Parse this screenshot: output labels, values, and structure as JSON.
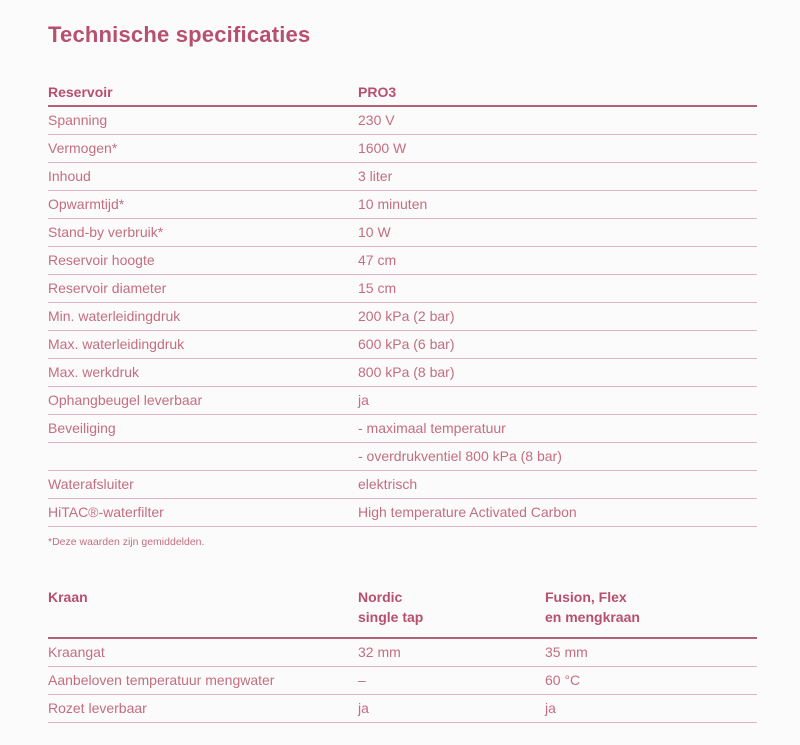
{
  "page": {
    "title": "Technische specificaties",
    "footnote": "*Deze waarden zijn gemiddelden."
  },
  "colors": {
    "accent": "#b7506e",
    "text": "#c36e81",
    "divider": "#e0b4bf",
    "header_divider": "#b26076",
    "background": "#fcfbfb"
  },
  "table1": {
    "header": {
      "label": "Reservoir",
      "value": "PRO3"
    },
    "rows": [
      {
        "label": "Spanning",
        "value": "230 V"
      },
      {
        "label": "Vermogen*",
        "value": "1600 W"
      },
      {
        "label": "Inhoud",
        "value": "3 liter"
      },
      {
        "label": "Opwarmtijd*",
        "value": "10 minuten"
      },
      {
        "label": "Stand-by verbruik*",
        "value": "10 W"
      },
      {
        "label": "Reservoir hoogte",
        "value": "47 cm"
      },
      {
        "label": "Reservoir diameter",
        "value": "15 cm"
      },
      {
        "label": "Min. waterleidingdruk",
        "value": "200 kPa (2 bar)"
      },
      {
        "label": "Max. waterleidingdruk",
        "value": "600 kPa (6 bar)"
      },
      {
        "label": "Max. werkdruk",
        "value": "800 kPa (8 bar)"
      },
      {
        "label": "Ophangbeugel leverbaar",
        "value": "ja"
      },
      {
        "label": "Beveiliging",
        "value": "- maximaal temperatuur"
      },
      {
        "label": "",
        "value": "- overdrukventiel 800 kPa (8 bar)"
      },
      {
        "label": "Waterafsluiter",
        "value": "elektrisch"
      },
      {
        "label": "HiTAC®-waterfilter",
        "value": "High temperature Activated Carbon"
      }
    ]
  },
  "table2": {
    "header": {
      "label": "Kraan",
      "col1": "Nordic\nsingle tap",
      "col2": "Fusion, Flex\nen mengkraan"
    },
    "rows": [
      {
        "label": "Kraangat",
        "col1": "32 mm",
        "col2": "35 mm"
      },
      {
        "label": "Aanbeloven temperatuur mengwater",
        "col1": "–",
        "col2": "60 °C"
      },
      {
        "label": "Rozet leverbaar",
        "col1": "ja",
        "col2": "ja"
      }
    ]
  }
}
